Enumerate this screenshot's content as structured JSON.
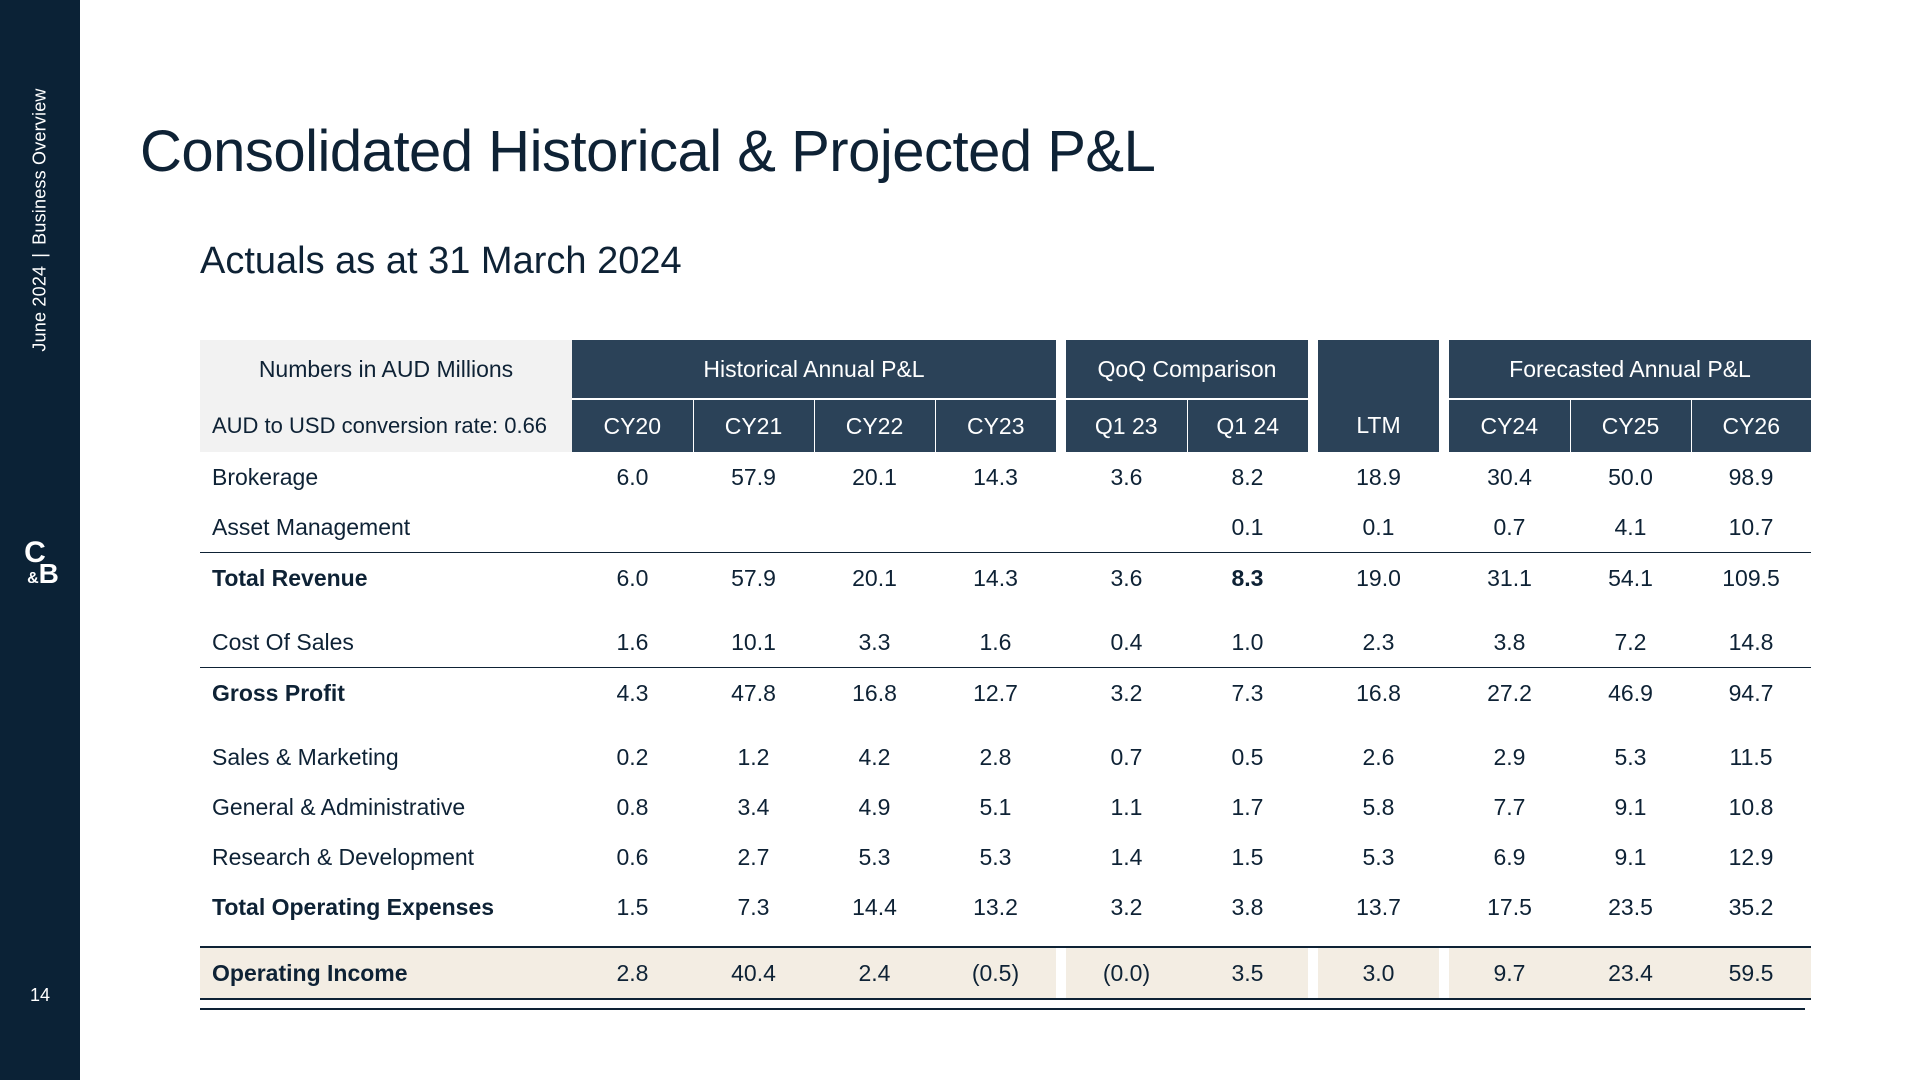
{
  "sidebar": {
    "date": "June 2024",
    "separator": "|",
    "section": "Business Overview",
    "logo_top": "C",
    "logo_amp": "&",
    "logo_bottom": "B",
    "page_number": "14"
  },
  "title": "Consolidated Historical & Projected P&L",
  "subtitle": "Actuals as at 31 March 2024",
  "table": {
    "units_label": "Numbers in AUD Millions",
    "conversion_label": "AUD to USD conversion rate: 0.66",
    "groups": {
      "historical": "Historical Annual P&L",
      "qoq": "QoQ Comparison",
      "forecast": "Forecasted Annual P&L"
    },
    "columns": [
      "CY20",
      "CY21",
      "CY22",
      "CY23",
      "Q1 23",
      "Q1 24",
      "LTM",
      "CY24",
      "CY25",
      "CY26"
    ],
    "rows": [
      {
        "label": "Brokerage",
        "values": [
          "6.0",
          "57.9",
          "20.1",
          "14.3",
          "3.6",
          "8.2",
          "18.9",
          "30.4",
          "50.0",
          "98.9"
        ]
      },
      {
        "label": "Asset Management",
        "values": [
          "",
          "",
          "",
          "",
          "",
          "0.1",
          "0.1",
          "0.7",
          "4.1",
          "10.7"
        ]
      },
      {
        "label": "Total Revenue",
        "values": [
          "6.0",
          "57.9",
          "20.1",
          "14.3",
          "3.6",
          "8.3",
          "19.0",
          "31.1",
          "54.1",
          "109.5"
        ]
      },
      {
        "label": "Cost Of Sales",
        "values": [
          "1.6",
          "10.1",
          "3.3",
          "1.6",
          "0.4",
          "1.0",
          "2.3",
          "3.8",
          "7.2",
          "14.8"
        ]
      },
      {
        "label": "Gross Profit",
        "values": [
          "4.3",
          "47.8",
          "16.8",
          "12.7",
          "3.2",
          "7.3",
          "16.8",
          "27.2",
          "46.9",
          "94.7"
        ]
      },
      {
        "label": "Sales & Marketing",
        "values": [
          "0.2",
          "1.2",
          "4.2",
          "2.8",
          "0.7",
          "0.5",
          "2.6",
          "2.9",
          "5.3",
          "11.5"
        ]
      },
      {
        "label": "General & Administrative",
        "values": [
          "0.8",
          "3.4",
          "4.9",
          "5.1",
          "1.1",
          "1.7",
          "5.8",
          "7.7",
          "9.1",
          "10.8"
        ]
      },
      {
        "label": "Research & Development",
        "values": [
          "0.6",
          "2.7",
          "5.3",
          "5.3",
          "1.4",
          "1.5",
          "5.3",
          "6.9",
          "9.1",
          "12.9"
        ]
      },
      {
        "label": "Total Operating Expenses",
        "values": [
          "1.5",
          "7.3",
          "14.4",
          "13.2",
          "3.2",
          "3.8",
          "13.7",
          "17.5",
          "23.5",
          "35.2"
        ]
      },
      {
        "label": "Operating Income",
        "values": [
          "2.8",
          "40.4",
          "2.4",
          "(0.5)",
          "(0.0)",
          "3.5",
          "3.0",
          "9.7",
          "23.4",
          "59.5"
        ]
      }
    ]
  }
}
